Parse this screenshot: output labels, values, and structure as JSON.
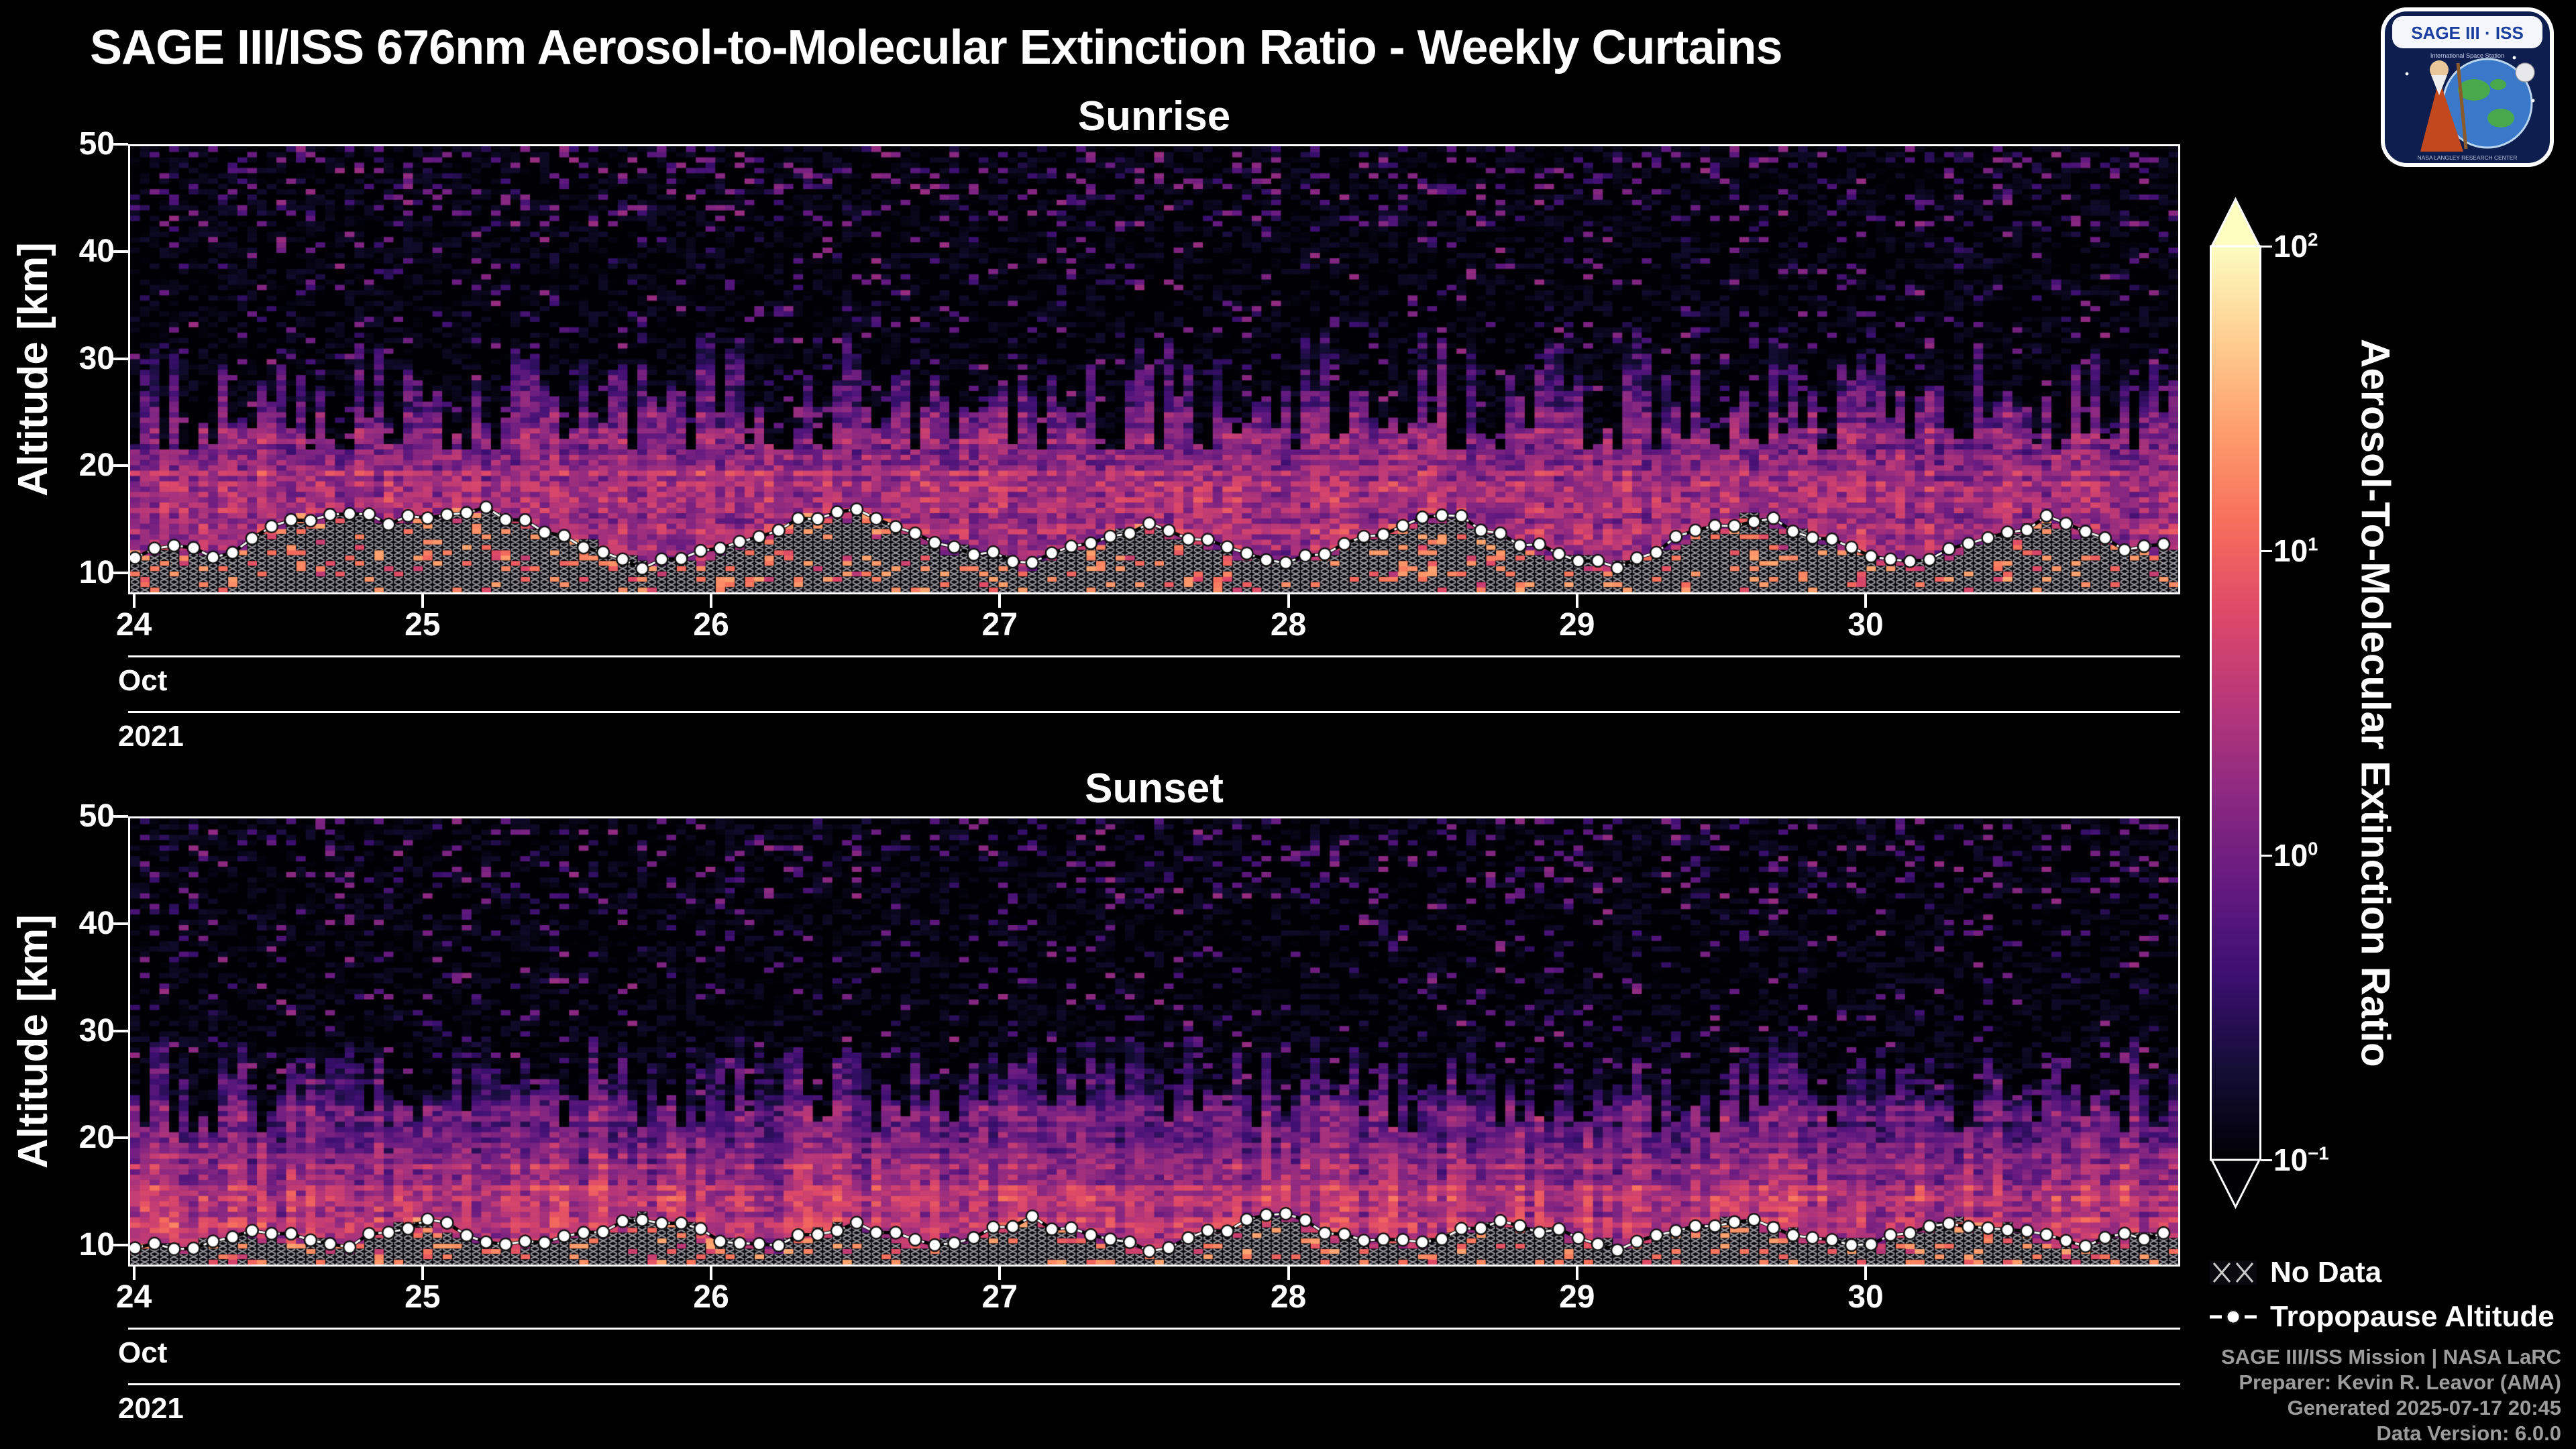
{
  "header": {
    "title": "SAGE III/ISS 676nm Aerosol-to-Molecular Extinction Ratio - Weekly Curtains"
  },
  "logo": {
    "title": "SAGE III · ISS",
    "subtitle": "International Space Station",
    "banner": "NASA LANGLEY RESEARCH CENTER"
  },
  "colorbar": {
    "label": "Aerosol-To-Molecular Extinction Ratio",
    "scale": "log",
    "range": [
      0.1,
      100
    ],
    "ticks": [
      {
        "base": "10",
        "exp": "2",
        "value": 100
      },
      {
        "base": "10",
        "exp": "1",
        "value": 10
      },
      {
        "base": "10",
        "exp": "0",
        "value": 1
      },
      {
        "base": "10",
        "exp": "−1",
        "value": 0.1
      }
    ],
    "stops": [
      [
        0.0,
        "#000004"
      ],
      [
        0.1,
        "#140e36"
      ],
      [
        0.2,
        "#3b0f70"
      ],
      [
        0.3,
        "#641a80"
      ],
      [
        0.4,
        "#8c2981"
      ],
      [
        0.5,
        "#b73779"
      ],
      [
        0.6,
        "#de4968"
      ],
      [
        0.7,
        "#f7705c"
      ],
      [
        0.8,
        "#fe9f6d"
      ],
      [
        0.9,
        "#fecf92"
      ],
      [
        1.0,
        "#fcfdbf"
      ]
    ]
  },
  "legend": {
    "no_data": "No Data",
    "tropopause": "Tropopause Altitude"
  },
  "footer": {
    "lines": [
      "SAGE III/ISS Mission | NASA LaRC",
      "Preparer: Kevin R. Leavor (AMA)",
      "Generated 2025-07-17 20:45",
      "Data Version: 6.0.0"
    ]
  },
  "chart_data": [
    {
      "type": "heatmap",
      "title": "Sunrise",
      "x_axis": {
        "ticks": [
          "24",
          "25",
          "26",
          "27",
          "28",
          "29",
          "30"
        ],
        "range_days": [
          23.98,
          31.09
        ],
        "month_label": "Oct",
        "year_label": "2021"
      },
      "y_axis": {
        "label": "Altitude [km]",
        "ticks": [
          50,
          40,
          30,
          20,
          10
        ],
        "range": [
          8,
          50
        ]
      },
      "color_scale": {
        "type": "log",
        "range": [
          0.1,
          100
        ],
        "colormap": "magma"
      },
      "columns": 210,
      "seed": 20211024,
      "dot_step": 2,
      "field_model": {
        "band_value": 2.4,
        "band_core": 19,
        "fade": 0.08,
        "band_noise": 0.8,
        "band_top_min": 21,
        "band_top_max": 33,
        "plume_power": 1.5,
        "col_noise": 0.3,
        "speckle": 0.07,
        "speckle_high": 0.16,
        "lowdata_prob": 0.18
      },
      "tropopause_km": [
        11.5,
        12.5,
        11,
        13.5,
        15,
        15.5,
        14.5,
        15.5,
        16,
        15,
        13.5,
        12,
        10.5,
        11,
        12.5,
        14,
        15,
        15.5,
        14,
        12.5,
        11.5,
        10.8,
        12,
        13.5,
        14.5,
        13,
        11.5,
        10.5,
        11.8,
        13.2,
        14.6,
        15.2,
        13.8,
        12.2,
        11,
        10.6,
        12.4,
        13.8,
        15,
        14.2,
        12.6,
        11.2,
        10.8,
        12.2,
        13.6,
        14.8,
        13.4,
        11.8,
        12.5
      ]
    },
    {
      "type": "heatmap",
      "title": "Sunset",
      "x_axis": {
        "ticks": [
          "24",
          "25",
          "26",
          "27",
          "28",
          "29",
          "30"
        ],
        "range_days": [
          23.98,
          31.09
        ],
        "month_label": "Oct",
        "year_label": "2021"
      },
      "y_axis": {
        "label": "Altitude [km]",
        "ticks": [
          50,
          40,
          30,
          20,
          10
        ],
        "range": [
          8,
          50
        ]
      },
      "color_scale": {
        "type": "log",
        "range": [
          0.1,
          100
        ],
        "colormap": "magma"
      },
      "columns": 210,
      "seed": 20211025,
      "dot_step": 2,
      "field_model": {
        "band_value": 3.0,
        "band_core": 15,
        "fade": 0.085,
        "band_noise": 0.7,
        "band_top_min": 20,
        "band_top_max": 30,
        "plume_power": 0.9,
        "col_noise": 0.55,
        "speckle": 0.07,
        "speckle_high": 0.15,
        "lowdata_prob": 0.18
      },
      "tropopause_km": [
        10,
        9.5,
        10.5,
        11,
        10.2,
        9.8,
        11.5,
        12,
        10.8,
        9.6,
        10.4,
        11.2,
        12.5,
        11.6,
        10.2,
        9.7,
        10.9,
        11.8,
        10.5,
        9.9,
        11.1,
        12.2,
        11.4,
        10.1,
        9.6,
        10.7,
        11.9,
        12.6,
        11.2,
        10.3,
        9.8,
        11,
        12.1,
        11.5,
        10.4,
        9.7,
        10.8,
        11.7,
        12.3,
        11.1,
        10.2,
        9.9,
        11.3,
        12,
        11.6,
        10.5,
        9.8,
        10.6,
        10.9
      ]
    }
  ]
}
